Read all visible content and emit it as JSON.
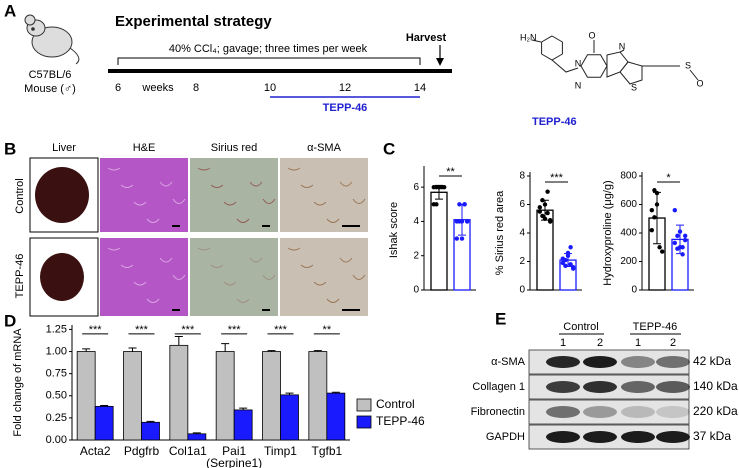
{
  "panel_labels": [
    "A",
    "B",
    "C",
    "D",
    "E"
  ],
  "strategy": {
    "title": "Experimental strategy",
    "treatment": "40% CCl₄; gavage; three times per week",
    "harvest": "Harvest",
    "weeks_label": "weeks",
    "timepoints": [
      "6",
      "8",
      "10",
      "12",
      "14"
    ],
    "drug": "TEPP-46",
    "mouse": [
      "C57BL/6",
      "Mouse (♂)"
    ]
  },
  "compound": {
    "name": "TEPP-46",
    "atoms": [
      "H₂N",
      "O",
      "N",
      "N",
      "N",
      "S",
      "S",
      "O"
    ]
  },
  "histology": {
    "columns": [
      "Liver",
      "H&E",
      "Sirius red",
      "α-SMA"
    ],
    "rows": [
      "Control",
      "TEPP-46"
    ]
  },
  "chart_data": [
    {
      "type": "bar",
      "ylabel": "Ishak score",
      "values": [
        5.7,
        4.1
      ],
      "errors": [
        0.4,
        0.9
      ],
      "points": [
        [
          6,
          6,
          6,
          6,
          6,
          5,
          5,
          6
        ],
        [
          4,
          4,
          3,
          5,
          4,
          3,
          5,
          4,
          5,
          4
        ]
      ],
      "colors": [
        "#000000",
        "#1a1aff"
      ],
      "ylim": [
        0,
        7
      ],
      "yticks": [
        0,
        2,
        4,
        6
      ],
      "significance": "**"
    },
    {
      "type": "bar",
      "ylabel": "% Sirius red area",
      "values": [
        5.6,
        2.1
      ],
      "errors": [
        0.7,
        0.45
      ],
      "points": [
        [
          5.8,
          6.3,
          5.0,
          6.9,
          4.8,
          5.5,
          5.2,
          6.0,
          5.4,
          4.9
        ],
        [
          2.2,
          1.7,
          2.6,
          3.0,
          1.6,
          1.9,
          2.1,
          2.4,
          1.8,
          1.5
        ]
      ],
      "colors": [
        "#000000",
        "#1a1aff"
      ],
      "ylim": [
        0,
        8
      ],
      "yticks": [
        0,
        2,
        4,
        6,
        8
      ],
      "significance": "***"
    },
    {
      "type": "bar",
      "ylabel": "Hydroxyproline (μg/g)",
      "values": [
        505,
        355
      ],
      "errors": [
        180,
        100
      ],
      "points": [
        [
          560,
          700,
          680,
          300,
          270,
          420,
          510,
          600
        ],
        [
          560,
          380,
          300,
          250,
          350,
          330,
          290,
          410,
          300,
          380
        ]
      ],
      "colors": [
        "#000000",
        "#1a1aff"
      ],
      "ylim": [
        0,
        800
      ],
      "yticks": [
        0,
        200,
        400,
        600,
        800
      ],
      "significance": "*"
    },
    {
      "type": "grouped_bar",
      "ylabel": "Fold change of mRNA",
      "categories": [
        "Acta2",
        "Pdgfrb",
        "Col1a1",
        "Pai1",
        "Timp1",
        "Tgfb1"
      ],
      "subcategories": [
        null,
        null,
        null,
        "(Serpine1)",
        null,
        null
      ],
      "series": [
        {
          "name": "Control",
          "color": "#c0c0c0",
          "values": [
            1.0,
            1.0,
            1.07,
            1.0,
            1.0,
            1.0
          ],
          "errors": [
            0.03,
            0.04,
            0.1,
            0.09,
            0.01,
            0.01
          ]
        },
        {
          "name": "TEPP-46",
          "color": "#1a1aff",
          "values": [
            0.38,
            0.2,
            0.07,
            0.34,
            0.51,
            0.53
          ],
          "errors": [
            0.01,
            0.01,
            0.01,
            0.02,
            0.02,
            0.01
          ]
        }
      ],
      "significance": [
        "***",
        "***",
        "***",
        "***",
        "***",
        "**"
      ],
      "ylim": [
        0,
        1.3
      ],
      "yticks": [
        {
          "value": 0,
          "label": "0.00"
        },
        {
          "value": 0.25,
          "label": "0.25"
        },
        {
          "value": 0.5,
          "label": "0.50"
        },
        {
          "value": 0.75,
          "label": "0.75"
        },
        {
          "value": 1,
          "label": "1.00"
        },
        {
          "value": 1.25,
          "label": "1.25"
        }
      ]
    }
  ],
  "western_blot": {
    "groups": [
      "Control",
      "TEPP-46"
    ],
    "lanes": [
      "1",
      "2",
      "1",
      "2"
    ],
    "proteins": [
      {
        "name": "α-SMA",
        "size": "42 kDa"
      },
      {
        "name": "Collagen 1",
        "size": "140 kDa"
      },
      {
        "name": "Fibronectin",
        "size": "220 kDa"
      },
      {
        "name": "GAPDH",
        "size": "37 kDa"
      }
    ]
  }
}
